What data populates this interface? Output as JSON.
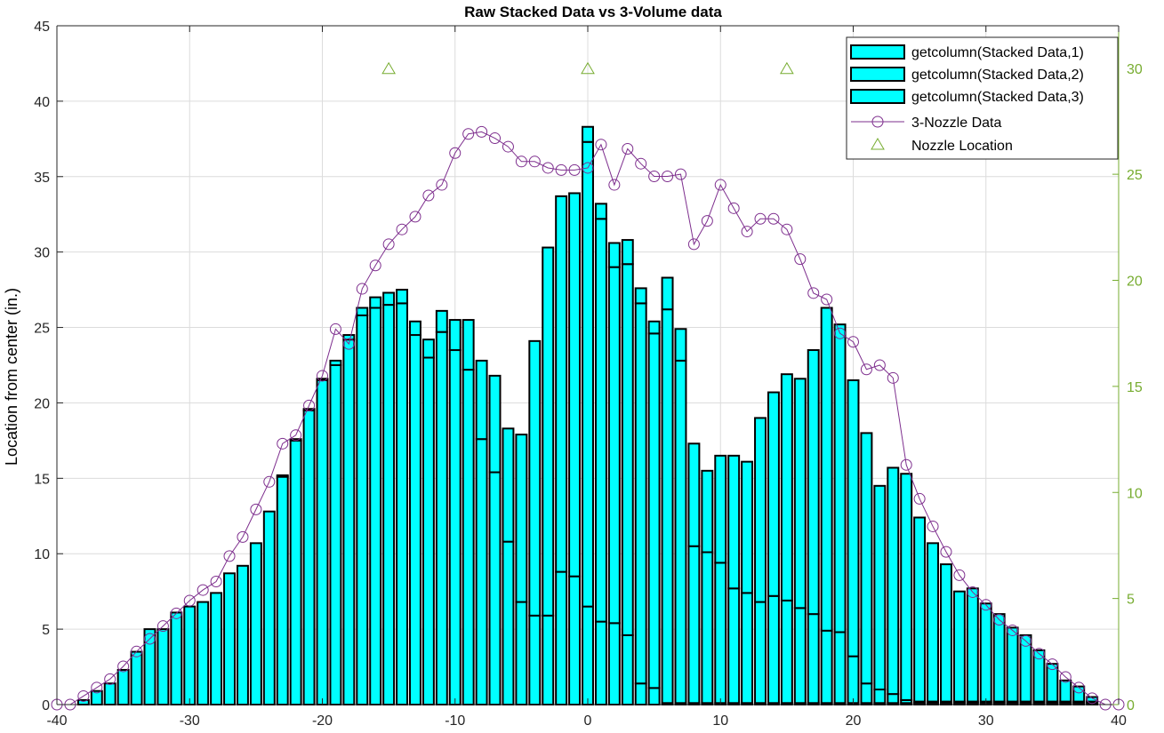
{
  "chart_data": {
    "type": "bar",
    "title": "Raw Stacked Data vs 3-Volume data",
    "xlabel": "",
    "ylabel": "Location from center (in.)",
    "xlim": [
      -40,
      40
    ],
    "ylim": [
      0,
      45
    ],
    "y2lim": [
      0,
      32
    ],
    "xticks": [
      -40,
      -30,
      -20,
      -10,
      0,
      10,
      20,
      30,
      40
    ],
    "yticks": [
      0,
      5,
      10,
      15,
      20,
      25,
      30,
      35,
      40,
      45
    ],
    "y2ticks": [
      0,
      5,
      10,
      15,
      20,
      25,
      30
    ],
    "grid": true,
    "legend_position": "top-right",
    "colors": {
      "bar_fill": "#00ffff",
      "bar_edge": "#000000",
      "line": "#7e2f8e",
      "nozzle": "#77ac30",
      "right_axis": "#77ac30",
      "grid": "#dcdcdc"
    },
    "x": [
      -38,
      -37,
      -36,
      -35,
      -34,
      -33,
      -32,
      -31,
      -30,
      -29,
      -28,
      -27,
      -26,
      -25,
      -24,
      -23,
      -22,
      -21,
      -20,
      -19,
      -18,
      -17,
      -16,
      -15,
      -14,
      -13,
      -12,
      -11,
      -10,
      -9,
      -8,
      -7,
      -6,
      -5,
      -4,
      -3,
      -2,
      -1,
      0,
      1,
      2,
      3,
      4,
      5,
      6,
      7,
      8,
      9,
      10,
      11,
      12,
      13,
      14,
      15,
      16,
      17,
      18,
      19,
      20,
      21,
      22,
      23,
      24,
      25,
      26,
      27,
      28,
      29,
      30,
      31,
      32,
      33,
      34,
      35,
      36,
      37,
      38
    ],
    "series": [
      {
        "name": "getcolumn(Stacked Data,1)",
        "values": [
          0.3,
          0.9,
          1.4,
          2.3,
          3.5,
          5.0,
          5.0,
          6.1,
          6.5,
          6.8,
          7.4,
          8.7,
          9.2,
          10.7,
          12.8,
          15.1,
          17.5,
          19.5,
          21.5,
          22.5,
          24.2,
          25.8,
          26.3,
          26.5,
          26.6,
          24.5,
          23.0,
          24.7,
          23.5,
          22.2,
          17.6,
          15.4,
          10.8,
          6.8,
          5.9,
          5.9,
          8.8,
          8.5,
          6.5,
          5.5,
          5.4,
          4.6,
          1.4,
          1.1,
          0.1,
          0.1,
          0.1,
          0.1,
          0.1,
          0.1,
          0.1,
          0.1,
          0.1,
          0.1,
          0.1,
          0.1,
          0.1,
          0.1,
          0.1,
          0.1,
          0.1,
          0.1,
          0.1,
          0.1,
          0.1,
          0.1,
          0.1,
          0.1,
          0.1,
          0.1,
          0.1,
          0.1,
          0.1,
          0.1,
          0.1,
          0.1,
          0.1
        ]
      },
      {
        "name": "getcolumn(Stacked Data,2)",
        "values": [
          0.0,
          0.0,
          0.0,
          0.0,
          0.0,
          0.0,
          0.0,
          0.0,
          0.0,
          0.0,
          0.0,
          0.0,
          0.0,
          0.0,
          0.0,
          0.1,
          0.1,
          0.1,
          0.1,
          0.3,
          0.3,
          0.5,
          0.7,
          0.8,
          0.9,
          0.9,
          1.2,
          1.4,
          2.0,
          3.3,
          5.2,
          6.4,
          7.5,
          11.1,
          18.2,
          24.4,
          24.9,
          25.4,
          30.8,
          26.7,
          23.6,
          24.6,
          25.2,
          23.5,
          26.1,
          22.7,
          10.4,
          10.0,
          9.3,
          7.6,
          7.3,
          6.7,
          7.1,
          6.8,
          6.3,
          5.9,
          4.8,
          4.7,
          3.1,
          1.3,
          0.9,
          0.6,
          0.2,
          0.1,
          0.1,
          0.1,
          0.1,
          0.1,
          0.1,
          0.1,
          0.1,
          0.1,
          0.1,
          0.1,
          0.1,
          0.1,
          0.1
        ]
      },
      {
        "name": "getcolumn(Stacked Data,3)",
        "values": [
          0.0,
          0.0,
          0.0,
          0.0,
          0.0,
          0.0,
          0.0,
          0.0,
          0.0,
          0.0,
          0.0,
          0.0,
          0.0,
          0.0,
          0.0,
          0.0,
          0.0,
          0.0,
          0.0,
          0.0,
          0.0,
          0.0,
          0.0,
          0.0,
          0.0,
          0.0,
          0.0,
          0.0,
          0.0,
          0.0,
          0.0,
          0.0,
          0.0,
          0.0,
          0.0,
          0.0,
          0.0,
          0.0,
          1.0,
          1.0,
          1.6,
          1.6,
          1.0,
          0.8,
          2.1,
          2.1,
          6.8,
          5.4,
          7.1,
          8.8,
          8.7,
          12.2,
          13.5,
          15.0,
          15.2,
          17.5,
          21.4,
          20.4,
          18.3,
          16.6,
          13.5,
          15.0,
          15.0,
          12.2,
          10.5,
          9.1,
          7.3,
          7.5,
          6.5,
          5.8,
          4.9,
          4.4,
          3.4,
          2.5,
          1.4,
          1.0,
          0.3
        ]
      }
    ],
    "line_series": {
      "name": "3-Nozzle Data",
      "axis": "right",
      "x": [
        -40,
        -39,
        -38,
        -37,
        -36,
        -35,
        -34,
        -33,
        -32,
        -31,
        -30,
        -29,
        -28,
        -27,
        -26,
        -25,
        -24,
        -23,
        -22,
        -21,
        -20,
        -19,
        -18,
        -17,
        -16,
        -15,
        -14,
        -13,
        -12,
        -11,
        -10,
        -9,
        -8,
        -7,
        -6,
        -5,
        -4,
        -3,
        -2,
        -1,
        0,
        1,
        2,
        3,
        4,
        5,
        6,
        7,
        8,
        9,
        10,
        11,
        12,
        13,
        14,
        15,
        16,
        17,
        18,
        19,
        20,
        21,
        22,
        23,
        24,
        25,
        26,
        27,
        28,
        29,
        30,
        31,
        32,
        33,
        34,
        35,
        36,
        37,
        38,
        39,
        40
      ],
      "values": [
        0.0,
        0.0,
        0.4,
        0.8,
        1.2,
        1.8,
        2.5,
        3.1,
        3.7,
        4.3,
        4.9,
        5.4,
        5.8,
        7.0,
        7.9,
        9.2,
        10.5,
        12.3,
        12.7,
        14.1,
        15.5,
        17.7,
        17.0,
        19.6,
        20.7,
        21.7,
        22.4,
        23.0,
        24.0,
        24.5,
        26.0,
        26.9,
        27.0,
        26.7,
        26.3,
        25.6,
        25.6,
        25.3,
        25.2,
        25.2,
        25.3,
        26.4,
        24.5,
        26.2,
        25.5,
        24.9,
        24.9,
        25.0,
        21.7,
        22.8,
        24.5,
        23.4,
        22.3,
        22.9,
        22.9,
        22.4,
        21.0,
        19.4,
        19.1,
        17.5,
        17.1,
        15.8,
        16.0,
        15.4,
        11.3,
        9.7,
        8.4,
        7.2,
        6.1,
        5.3,
        4.7,
        4.0,
        3.5,
        3.0,
        2.4,
        1.9,
        1.3,
        0.8,
        0.3,
        0.0,
        0.0
      ]
    },
    "nozzle_locations": {
      "name": "Nozzle Location",
      "axis": "right",
      "x": [
        -15,
        0,
        15
      ],
      "values": [
        30,
        30,
        30
      ]
    }
  }
}
